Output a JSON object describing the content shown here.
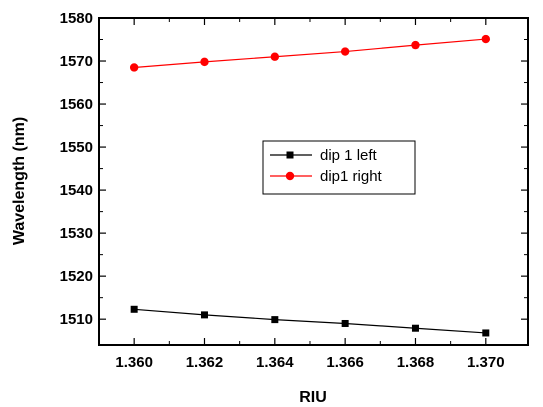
{
  "chart_data": {
    "type": "line",
    "title": "",
    "xlabel": "RIU",
    "ylabel": "Wavelength (nm)",
    "xlim": [
      1.359,
      1.3712
    ],
    "ylim": [
      1504,
      1580
    ],
    "x": [
      1.36,
      1.362,
      1.364,
      1.366,
      1.368,
      1.37
    ],
    "xticks": [
      1.36,
      1.362,
      1.364,
      1.366,
      1.368,
      1.37
    ],
    "xtick_labels": [
      "1.360",
      "1.362",
      "1.364",
      "1.366",
      "1.368",
      "1.370"
    ],
    "yticks": [
      1510,
      1520,
      1530,
      1540,
      1550,
      1560,
      1570,
      1580
    ],
    "ytick_labels": [
      "1510",
      "1520",
      "1530",
      "1540",
      "1550",
      "1560",
      "1570",
      "1580"
    ],
    "grid": false,
    "legend_position": "center",
    "series": [
      {
        "name": "dip 1 left",
        "color": "#000000",
        "marker": "square",
        "values": [
          1512.3,
          1511.0,
          1509.9,
          1509.0,
          1507.9,
          1506.8
        ]
      },
      {
        "name": "dip1 right",
        "color": "#ff0000",
        "marker": "circle",
        "values": [
          1568.5,
          1569.8,
          1571.0,
          1572.2,
          1573.7,
          1575.1
        ]
      }
    ]
  }
}
